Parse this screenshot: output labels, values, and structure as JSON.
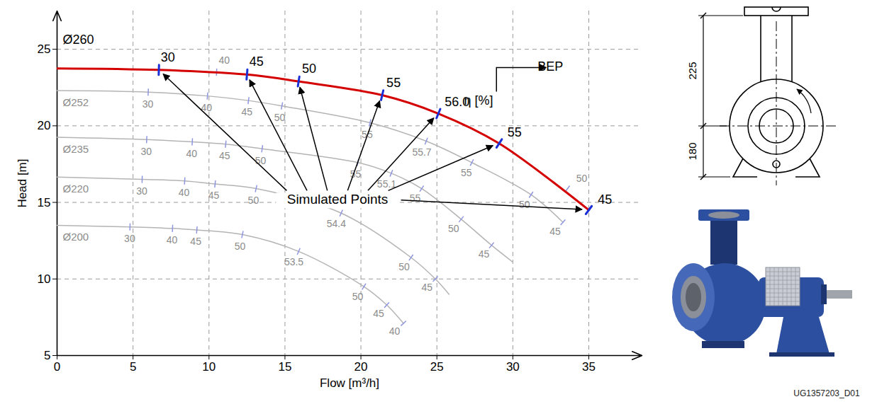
{
  "chart_data": {
    "type": "line",
    "x_label": "Flow [m³/h]",
    "y_label": "Head [m]",
    "xlim": [
      0,
      38.5
    ],
    "ylim": [
      5,
      27.5
    ],
    "xticks": [
      0,
      5,
      10,
      15,
      20,
      25,
      30,
      35
    ],
    "yticks": [
      5,
      10,
      15,
      20,
      25
    ],
    "grid": true,
    "series": [
      {
        "name": "Ø260",
        "color": "#d40000",
        "line_style": "bold",
        "marker": "tick",
        "x": [
          0,
          6.7,
          12.5,
          15.9,
          21.4,
          25.1,
          29.1,
          35
        ],
        "values": [
          23.75,
          23.65,
          23.35,
          22.9,
          22.0,
          20.8,
          18.85,
          14.5
        ],
        "efficiency": [
          null,
          30,
          45,
          50,
          55,
          {
            "value": 56,
            "label": "56.0"
          },
          55,
          45
        ],
        "other_points": {
          "x": [
            10.5,
            33.6
          ],
          "values": [
            23.5,
            15.9
          ],
          "efficiency": [
            40,
            50
          ]
        }
      },
      {
        "name": "Ø252",
        "color": "#b4b4b4",
        "line_style": "solid",
        "marker": "tick",
        "x": [
          0,
          6.0,
          9.9,
          12.6,
          14.8,
          20.6,
          24.3,
          27.3,
          31.2,
          33.3
        ],
        "values": [
          22.3,
          22.2,
          21.95,
          21.65,
          21.3,
          20.2,
          19.0,
          17.6,
          15.5,
          13.7
        ],
        "efficiency": [
          null,
          30,
          40,
          45,
          50,
          55,
          55.7,
          55,
          50,
          45
        ]
      },
      {
        "name": "Ø235",
        "color": "#b4b4b4",
        "line_style": "solid",
        "marker": "tick",
        "x": [
          0,
          5.9,
          8.9,
          11.1,
          13.5,
          19.8,
          22.0,
          24.0,
          26.6,
          28.6,
          30.0
        ],
        "values": [
          19.25,
          19.1,
          18.95,
          18.8,
          18.5,
          17.6,
          16.9,
          15.9,
          13.9,
          12.2,
          11.1
        ],
        "efficiency": [
          null,
          30,
          40,
          45,
          50,
          55,
          55.1,
          55,
          50,
          45,
          null
        ]
      },
      {
        "name": "Ø220",
        "color": "#b4b4b4",
        "line_style": "solid",
        "marker": "tick",
        "x": [
          0,
          5.6,
          8.4,
          10.4,
          13.1,
          18.7,
          23.3,
          24.9,
          25.8
        ],
        "values": [
          16.65,
          16.5,
          16.4,
          16.2,
          15.9,
          14.3,
          11.4,
          10.0,
          9.0
        ],
        "efficiency": [
          null,
          30,
          40,
          45,
          50,
          54.4,
          50,
          45,
          null
        ]
      },
      {
        "name": "Ø200",
        "color": "#b4b4b4",
        "line_style": "solid",
        "marker": "tick",
        "x": [
          0,
          4.8,
          7.6,
          9.2,
          12.2,
          15.9,
          20.2,
          21.7,
          22.8
        ],
        "values": [
          13.5,
          13.4,
          13.3,
          13.2,
          12.9,
          11.8,
          9.5,
          8.3,
          7.1
        ],
        "efficiency": [
          null,
          30,
          40,
          45,
          50,
          53.5,
          50,
          45,
          40
        ]
      }
    ],
    "annotations": {
      "efficiency_label": "η [%]",
      "bep": "BEP",
      "simulated_points": "Simulated Points"
    }
  },
  "diagram": {
    "dimensions": [
      225,
      180
    ],
    "image_caption": "UG1357203_D01"
  }
}
